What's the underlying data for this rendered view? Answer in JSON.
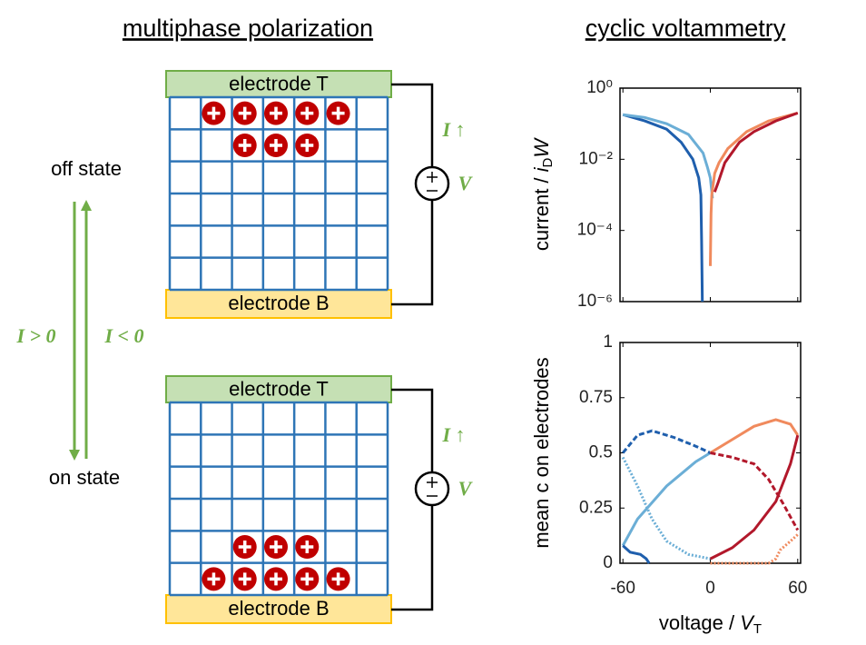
{
  "diagram": {
    "left_title": "multiphase polarization",
    "right_title": "cyclic voltammetry",
    "off_state": "off state",
    "on_state": "on state",
    "arrow_down_label": "I > 0",
    "arrow_up_label": "I < 0",
    "top_panel": {
      "electrode_top": "electrode T",
      "electrode_bottom": "electrode B",
      "current": "I ↑",
      "voltage": "V"
    },
    "bottom_panel": {
      "electrode_top": "electrode T",
      "electrode_bottom": "electrode B",
      "current": "I ↑",
      "voltage": "V"
    }
  },
  "chart_data": [
    {
      "type": "line",
      "ylabel": [
        "current / ",
        "i",
        "D",
        "W"
      ],
      "log_y": true,
      "xlim": [
        -62,
        62
      ],
      "ylim": [
        1e-06,
        1
      ],
      "xticks": [
        -60,
        0,
        60
      ],
      "yticks": [
        {
          "value": 1e-06,
          "label": "10⁻⁶"
        },
        {
          "value": 0.0001,
          "label": "10⁻⁴"
        },
        {
          "value": 0.01,
          "label": "10⁻²"
        },
        {
          "value": 1,
          "label": "10⁰"
        }
      ],
      "series": [
        {
          "name": "dark blue",
          "color": "#1f5fad",
          "dash": "solid",
          "x": [
            -60,
            -45,
            -30,
            -20,
            -12,
            -8,
            -6.5,
            -6,
            -5.5
          ],
          "values": [
            0.18,
            0.12,
            0.07,
            0.03,
            0.01,
            0.003,
            0.001,
            5e-05,
            1e-06
          ]
        },
        {
          "name": "light blue",
          "color": "#6baed6",
          "dash": "solid",
          "x": [
            -60,
            -45,
            -30,
            -15,
            -5,
            -2,
            0,
            1.5
          ],
          "values": [
            0.18,
            0.15,
            0.1,
            0.05,
            0.015,
            0.006,
            0.003,
            0.0008
          ]
        },
        {
          "name": "orange",
          "color": "#f08a5d",
          "dash": "solid",
          "x": [
            0,
            0.5,
            1,
            3,
            6,
            12,
            25,
            40,
            60
          ],
          "values": [
            1e-05,
            0.0003,
            0.001,
            0.004,
            0.008,
            0.02,
            0.06,
            0.12,
            0.2
          ]
        },
        {
          "name": "dark red",
          "color": "#b2182b",
          "dash": "solid",
          "x": [
            3,
            5,
            10,
            20,
            30,
            45,
            60
          ],
          "values": [
            0.0012,
            0.002,
            0.008,
            0.03,
            0.06,
            0.12,
            0.2
          ]
        }
      ]
    },
    {
      "type": "line",
      "ylabel": [
        "mean c on electrodes"
      ],
      "xlabel": [
        "voltage / ",
        "V",
        "T"
      ],
      "log_y": false,
      "xlim": [
        -62,
        62
      ],
      "ylim": [
        0,
        1
      ],
      "xticks": [
        -60,
        0,
        60
      ],
      "yticks": [
        0,
        0.25,
        0.5,
        0.75,
        1
      ],
      "series": [
        {
          "name": "light blue solid",
          "color": "#6baed6",
          "dash": "solid",
          "x": [
            -60,
            -50,
            -30,
            -10,
            0
          ],
          "values": [
            0.08,
            0.2,
            0.35,
            0.46,
            0.5
          ]
        },
        {
          "name": "dark blue solid",
          "color": "#1f5fad",
          "dash": "solid",
          "x": [
            -60,
            -55,
            -48,
            -44,
            -42
          ],
          "values": [
            0.08,
            0.05,
            0.04,
            0.02,
            0
          ]
        },
        {
          "name": "dark blue dashed",
          "color": "#1f5fad",
          "dash": "dashed",
          "x": [
            -60,
            -50,
            -40,
            -25,
            -10,
            0
          ],
          "values": [
            0.5,
            0.58,
            0.6,
            0.57,
            0.53,
            0.5
          ]
        },
        {
          "name": "light blue dotted",
          "color": "#6baed6",
          "dash": "dotted",
          "x": [
            -60,
            -50,
            -40,
            -30,
            -15,
            0
          ],
          "values": [
            0.48,
            0.35,
            0.2,
            0.1,
            0.04,
            0.02
          ]
        },
        {
          "name": "orange solid",
          "color": "#f08a5d",
          "dash": "solid",
          "x": [
            0,
            15,
            30,
            45,
            55,
            60
          ],
          "values": [
            0.5,
            0.56,
            0.62,
            0.65,
            0.63,
            0.58
          ]
        },
        {
          "name": "dark red solid",
          "color": "#b2182b",
          "dash": "solid",
          "x": [
            0,
            15,
            30,
            45,
            55,
            60
          ],
          "values": [
            0.02,
            0.07,
            0.15,
            0.28,
            0.45,
            0.58
          ]
        },
        {
          "name": "dark red dashed",
          "color": "#b2182b",
          "dash": "dashed",
          "x": [
            0,
            15,
            30,
            40,
            50,
            60
          ],
          "values": [
            0.5,
            0.48,
            0.45,
            0.38,
            0.27,
            0.15
          ]
        },
        {
          "name": "orange dotted",
          "color": "#f08a5d",
          "dash": "dotted",
          "x": [
            0,
            20,
            40,
            45,
            48,
            55,
            60
          ],
          "values": [
            0,
            0,
            0,
            0.02,
            0.06,
            0.1,
            0.13
          ]
        }
      ]
    }
  ]
}
